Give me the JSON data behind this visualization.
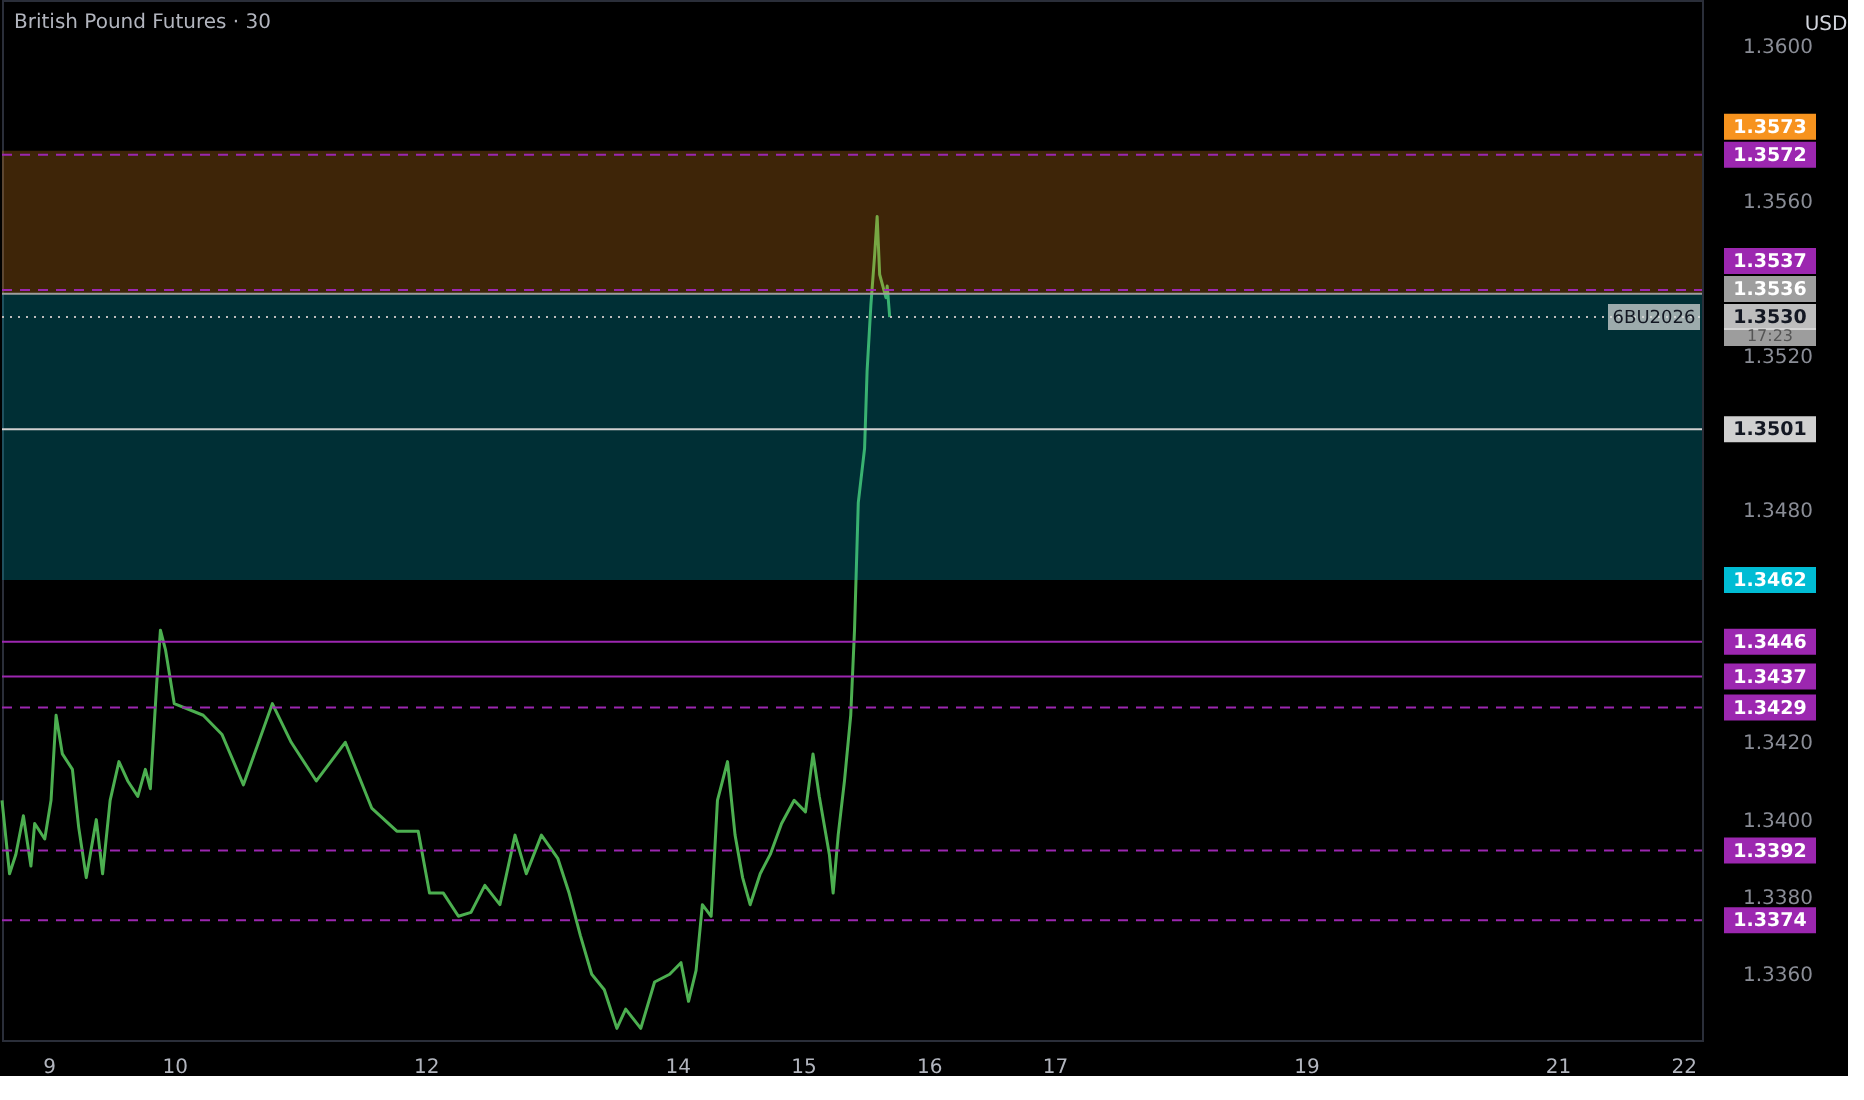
{
  "chart_data": {
    "type": "line",
    "title": "British Pound Futures · 30",
    "x": [
      8.63,
      8.69,
      8.74,
      8.8,
      8.86,
      8.89,
      8.97,
      9.02,
      9.06,
      9.11,
      9.19,
      9.24,
      9.3,
      9.38,
      9.43,
      9.49,
      9.56,
      9.63,
      9.71,
      9.77,
      9.81,
      9.86,
      9.89,
      9.93,
      10.0,
      10.23,
      10.38,
      10.55,
      10.78,
      10.93,
      11.13,
      11.36,
      11.57,
      11.77,
      11.94,
      12.03,
      12.14,
      12.26,
      12.36,
      12.47,
      12.59,
      12.71,
      12.8,
      12.92,
      13.05,
      13.14,
      13.23,
      13.32,
      13.42,
      13.52,
      13.59,
      13.71,
      13.82,
      13.94,
      14.03,
      14.09,
      14.15,
      14.2,
      14.27,
      14.32,
      14.4,
      14.46,
      14.52,
      14.58,
      14.66,
      14.74,
      14.83,
      14.93,
      15.02,
      15.08,
      15.13,
      15.21,
      15.24,
      15.28,
      15.33,
      15.38,
      15.41,
      15.44,
      15.49,
      15.51,
      15.54,
      15.57,
      15.59,
      15.61,
      15.66,
      15.67,
      15.69
    ],
    "series": [
      {
        "color": "#4caf50",
        "values": [
          1.3405,
          1.3386,
          1.3391,
          1.3401,
          1.3388,
          1.3399,
          1.3395,
          1.3405,
          1.3427,
          1.3417,
          1.3413,
          1.3398,
          1.3385,
          1.34,
          1.3386,
          1.3405,
          1.3415,
          1.341,
          1.3406,
          1.3413,
          1.3408,
          1.3435,
          1.3449,
          1.3444,
          1.343,
          1.3427,
          1.3422,
          1.3409,
          1.343,
          1.342,
          1.341,
          1.342,
          1.3403,
          1.3397,
          1.3397,
          1.3381,
          1.3381,
          1.3375,
          1.3376,
          1.3383,
          1.3378,
          1.3396,
          1.3386,
          1.3396,
          1.339,
          1.3381,
          1.337,
          1.336,
          1.3356,
          1.3346,
          1.3351,
          1.3346,
          1.3358,
          1.336,
          1.3363,
          1.3353,
          1.3361,
          1.3378,
          1.3375,
          1.3405,
          1.3415,
          1.3396,
          1.3385,
          1.3378,
          1.3386,
          1.3391,
          1.3399,
          1.3405,
          1.3402,
          1.3417,
          1.3406,
          1.3391,
          1.3381,
          1.3396,
          1.341,
          1.3427,
          1.3449,
          1.3482,
          1.3496,
          1.3516,
          1.3533,
          1.3546,
          1.3556,
          1.3541,
          1.3535,
          1.3538,
          1.353
        ]
      }
    ],
    "xlim": [
      8.63,
      22.15
    ],
    "xticks": [
      9,
      10,
      12,
      14,
      15,
      16,
      17,
      19,
      21,
      22
    ],
    "ylim": [
      1.3343,
      1.3612
    ],
    "yticks": [
      {
        "value": 1.336,
        "label": "1.3360"
      },
      {
        "value": 1.338,
        "label": "1.3380"
      },
      {
        "value": 1.34,
        "label": "1.3400"
      },
      {
        "value": 1.342,
        "label": "1.3420"
      },
      {
        "value": 1.348,
        "label": "1.3480"
      },
      {
        "value": 1.352,
        "label": "1.3520"
      },
      {
        "value": 1.356,
        "label": "1.3560"
      },
      {
        "value": 1.36,
        "label": "1.3600"
      }
    ],
    "grid": false,
    "marker": "none",
    "line_style": "solid",
    "bands": [
      {
        "axis": "y",
        "from": 1.3536,
        "to": 1.3573,
        "label": "1.3573",
        "color": "#f7931e"
      },
      {
        "axis": "y",
        "from": 1.3462,
        "to": 1.3536,
        "label": "1.3462",
        "color": "#00bcd4"
      }
    ],
    "ref_lines": [
      {
        "axis": "y",
        "value": 1.3572,
        "label": "1.3572",
        "color": "#9c27b0",
        "line_style": "dashed"
      },
      {
        "axis": "y",
        "value": 1.3537,
        "label": "1.3537",
        "color": "#9c27b0",
        "line_style": "dashed"
      },
      {
        "axis": "y",
        "value": 1.3536,
        "label": "1.3536",
        "color": "#9e9e9e",
        "line_style": "solid"
      },
      {
        "axis": "y",
        "value": 1.353,
        "label": "1.3530",
        "color": "#bdbdbd",
        "line_style": "dotted"
      },
      {
        "axis": "y",
        "value": 1.3501,
        "label": "1.3501",
        "color": "#d0d0d0",
        "line_style": "solid"
      },
      {
        "axis": "y",
        "value": 1.3446,
        "label": "1.3446",
        "color": "#9c27b0",
        "line_style": "solid"
      },
      {
        "axis": "y",
        "value": 1.3437,
        "label": "1.3437",
        "color": "#9c27b0",
        "line_style": "solid"
      },
      {
        "axis": "y",
        "value": 1.3429,
        "label": "1.3429",
        "color": "#9c27b0",
        "line_style": "dashed"
      },
      {
        "axis": "y",
        "value": 1.3392,
        "label": "1.3392",
        "color": "#9c27b0",
        "line_style": "dashed"
      },
      {
        "axis": "y",
        "value": 1.3374,
        "label": "1.3374",
        "color": "#9c27b0",
        "line_style": "dashed"
      }
    ],
    "annotations": [
      "USD",
      {
        "text": "6BU2026",
        "y": 1.353
      },
      "17:23"
    ]
  }
}
